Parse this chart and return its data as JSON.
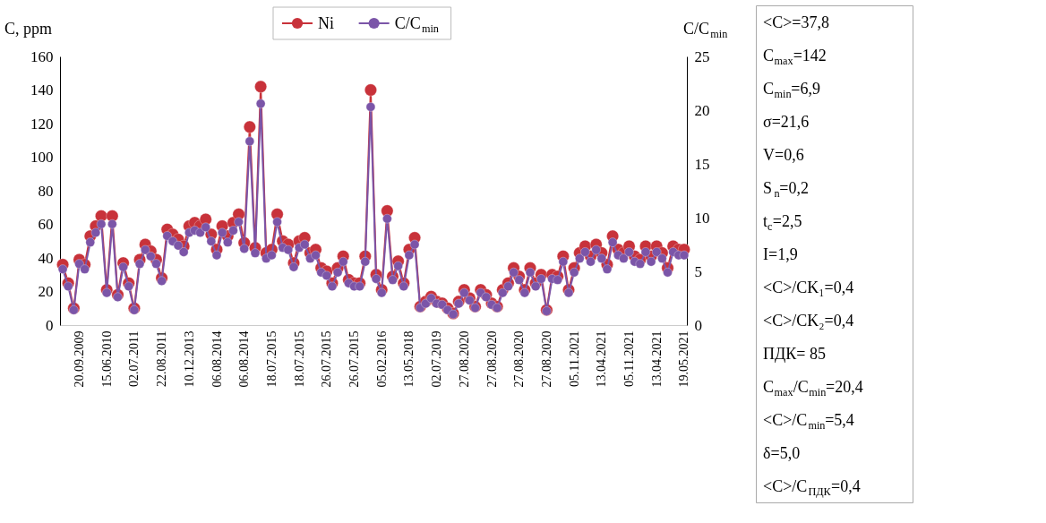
{
  "chart_data": {
    "type": "line",
    "ylabel": "C, ppm",
    "y2label": "C/C$_{min}$",
    "marker": "circle",
    "legend": "top",
    "categories": [
      null,
      null,
      null,
      "20.09.2009",
      null,
      null,
      null,
      null,
      "15.06.2010",
      null,
      null,
      null,
      null,
      "02.07.2011",
      null,
      null,
      null,
      null,
      "22.08.2011",
      null,
      null,
      null,
      null,
      "10.12.2013",
      null,
      null,
      null,
      null,
      "06.08.2014",
      null,
      null,
      null,
      null,
      "06.08.2014",
      null,
      null,
      null,
      null,
      "18.07.2015",
      null,
      null,
      null,
      null,
      "18.07.2015",
      null,
      null,
      null,
      null,
      "26.07.2015",
      null,
      null,
      null,
      null,
      "26.07.2015",
      null,
      null,
      null,
      null,
      "05.02.2016",
      null,
      null,
      null,
      null,
      "13.05.2018",
      null,
      null,
      null,
      null,
      "02.07.2019",
      null,
      null,
      null,
      null,
      "27.08.2020",
      null,
      null,
      null,
      null,
      "27.08.2020",
      null,
      null,
      null,
      null,
      "27.08.2020",
      null,
      null,
      null,
      null,
      "27.08.2020",
      null,
      null,
      null,
      null,
      "05.11.2021",
      null,
      null,
      null,
      null,
      "13.04.2021",
      null,
      null,
      null,
      null,
      "05.11.2021",
      null,
      null,
      null,
      null,
      "13.04.2021",
      null,
      null,
      null,
      null,
      "19.05.2021"
    ],
    "ylim": [
      0,
      160
    ],
    "yticks": [
      0,
      20,
      40,
      60,
      80,
      100,
      120,
      140,
      160
    ],
    "y2lim": [
      0,
      25
    ],
    "y2ticks": [
      0,
      5,
      10,
      15,
      20,
      25
    ],
    "series": [
      {
        "name": "Ni",
        "color": "#c8323a",
        "values": [
          36,
          25,
          10,
          39,
          36,
          53,
          59,
          65,
          21,
          65,
          18,
          37,
          25,
          10,
          39,
          48,
          44,
          39,
          28,
          57,
          54,
          51,
          47,
          59,
          61,
          59,
          63,
          54,
          45,
          59,
          53,
          61,
          66,
          49,
          118,
          46,
          142,
          43,
          45,
          66,
          50,
          48,
          37,
          50,
          52,
          43,
          45,
          34,
          32,
          25,
          34,
          41,
          27,
          25,
          25,
          41,
          140,
          30,
          21,
          68,
          29,
          38,
          25,
          45,
          52,
          11,
          14,
          17,
          14,
          13,
          10,
          6.9,
          14,
          21,
          16,
          11,
          21,
          18,
          13,
          11,
          21,
          25,
          34,
          29,
          21,
          34,
          25,
          30,
          9,
          30,
          29,
          41,
          21,
          34,
          43,
          47,
          41,
          48,
          43,
          36,
          53,
          45,
          43,
          47,
          41,
          39,
          47,
          41,
          47,
          43,
          34,
          47,
          45,
          45
        ]
      },
      {
        "name": "C/C$_{min}$",
        "color": "#7b55a8",
        "axis": "y2",
        "values": [
          5.2,
          3.6,
          1.4,
          5.7,
          5.2,
          7.7,
          8.6,
          9.4,
          3.0,
          9.4,
          2.6,
          5.4,
          3.6,
          1.4,
          5.7,
          7.0,
          6.4,
          5.7,
          4.1,
          8.3,
          7.8,
          7.4,
          6.8,
          8.6,
          8.8,
          8.6,
          9.1,
          7.8,
          6.5,
          8.6,
          7.7,
          8.8,
          9.6,
          7.1,
          17.1,
          6.7,
          20.6,
          6.2,
          6.5,
          9.6,
          7.2,
          7.0,
          5.4,
          7.2,
          7.5,
          6.2,
          6.5,
          4.9,
          4.6,
          3.6,
          4.9,
          5.9,
          3.9,
          3.6,
          3.6,
          5.9,
          20.3,
          4.3,
          3.0,
          9.9,
          4.2,
          5.5,
          3.6,
          6.5,
          7.5,
          1.6,
          2.0,
          2.5,
          2.0,
          1.9,
          1.4,
          1.0,
          2.0,
          3.0,
          2.3,
          1.6,
          3.0,
          2.6,
          1.9,
          1.6,
          3.0,
          3.6,
          4.9,
          4.2,
          3.0,
          4.9,
          3.6,
          4.3,
          1.3,
          4.3,
          4.2,
          5.9,
          3.0,
          4.9,
          6.2,
          6.8,
          5.9,
          7.0,
          6.2,
          5.2,
          7.7,
          6.5,
          6.2,
          6.8,
          5.9,
          5.7,
          6.8,
          5.9,
          6.8,
          6.2,
          4.9,
          6.8,
          6.5,
          6.5
        ]
      }
    ],
    "annotations": [
      "<C>=37,8",
      "C$_{max}$=142",
      "C$_{min}$=6,9",
      "σ=21,6",
      "V=0,6",
      "S$_{n}$=0,2",
      "t$_{c}$=2,5",
      "I=1,9",
      "<C>/CK₁=0,4",
      "<C>/CK₂=0,4",
      "ПДК= 85",
      "C$_{max}$/C$_{min}$=20,4",
      "<C>/C$_{min}$=5,4",
      "δ=5,0",
      "<C>/C$_{ПДК}$=0,4"
    ]
  }
}
